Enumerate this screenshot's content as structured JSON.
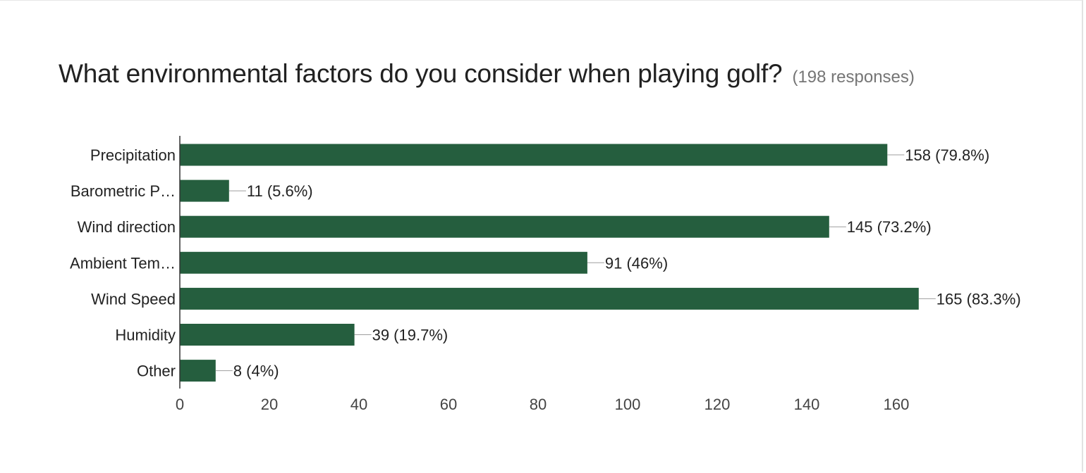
{
  "question": {
    "title": "What environmental factors do you consider when playing golf?",
    "response_count": "(198 responses)"
  },
  "chart_data": {
    "type": "bar",
    "orientation": "horizontal",
    "categories": [
      "Precipitation",
      "Barometric P…",
      "Wind direction",
      "Ambient Tem…",
      "Wind Speed",
      "Humidity",
      "Other"
    ],
    "values": [
      158,
      11,
      145,
      91,
      165,
      39,
      8
    ],
    "value_labels": [
      "158 (79.8%)",
      "11 (5.6%)",
      "145 (73.2%)",
      "91 (46%)",
      "165 (83.3%)",
      "39 (19.7%)",
      "8 (4%)"
    ],
    "x_ticks": [
      0,
      20,
      40,
      60,
      80,
      100,
      120,
      140,
      160
    ],
    "xlim": [
      0,
      165
    ],
    "bar_color": "#255e3e",
    "grid": false,
    "legend": "none"
  }
}
